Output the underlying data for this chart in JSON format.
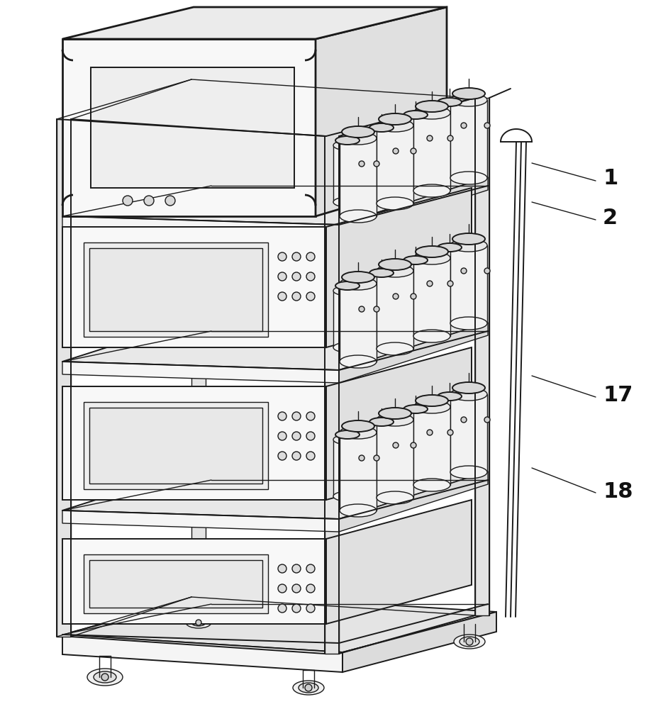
{
  "background_color": "#ffffff",
  "line_color": "#1a1a1a",
  "label_color": "#111111",
  "lw_thick": 2.0,
  "lw_med": 1.4,
  "lw_thin": 1.0,
  "label_1": "1",
  "label_2": "2",
  "label_17": "17",
  "label_18": "18",
  "label_fontsize": 22,
  "fig_width": 9.42,
  "fig_height": 10.0,
  "dpi": 100,
  "cart": {
    "shelf_fill": "#f5f5f5",
    "shelf_top_fill": "#e8e8e8",
    "shelf_side_fill": "#dcdcdc",
    "box_front_fill": "#f8f8f8",
    "box_side_fill": "#e0e0e0",
    "box_top_fill": "#ebebeb",
    "screen_fill": "#eeeeee",
    "frame_fill": "#e4e4e4",
    "cyl_body_fill": "#f2f2f2",
    "cyl_top_fill": "#e8e8e8",
    "cyl_cap_fill": "#d8d8d8"
  }
}
